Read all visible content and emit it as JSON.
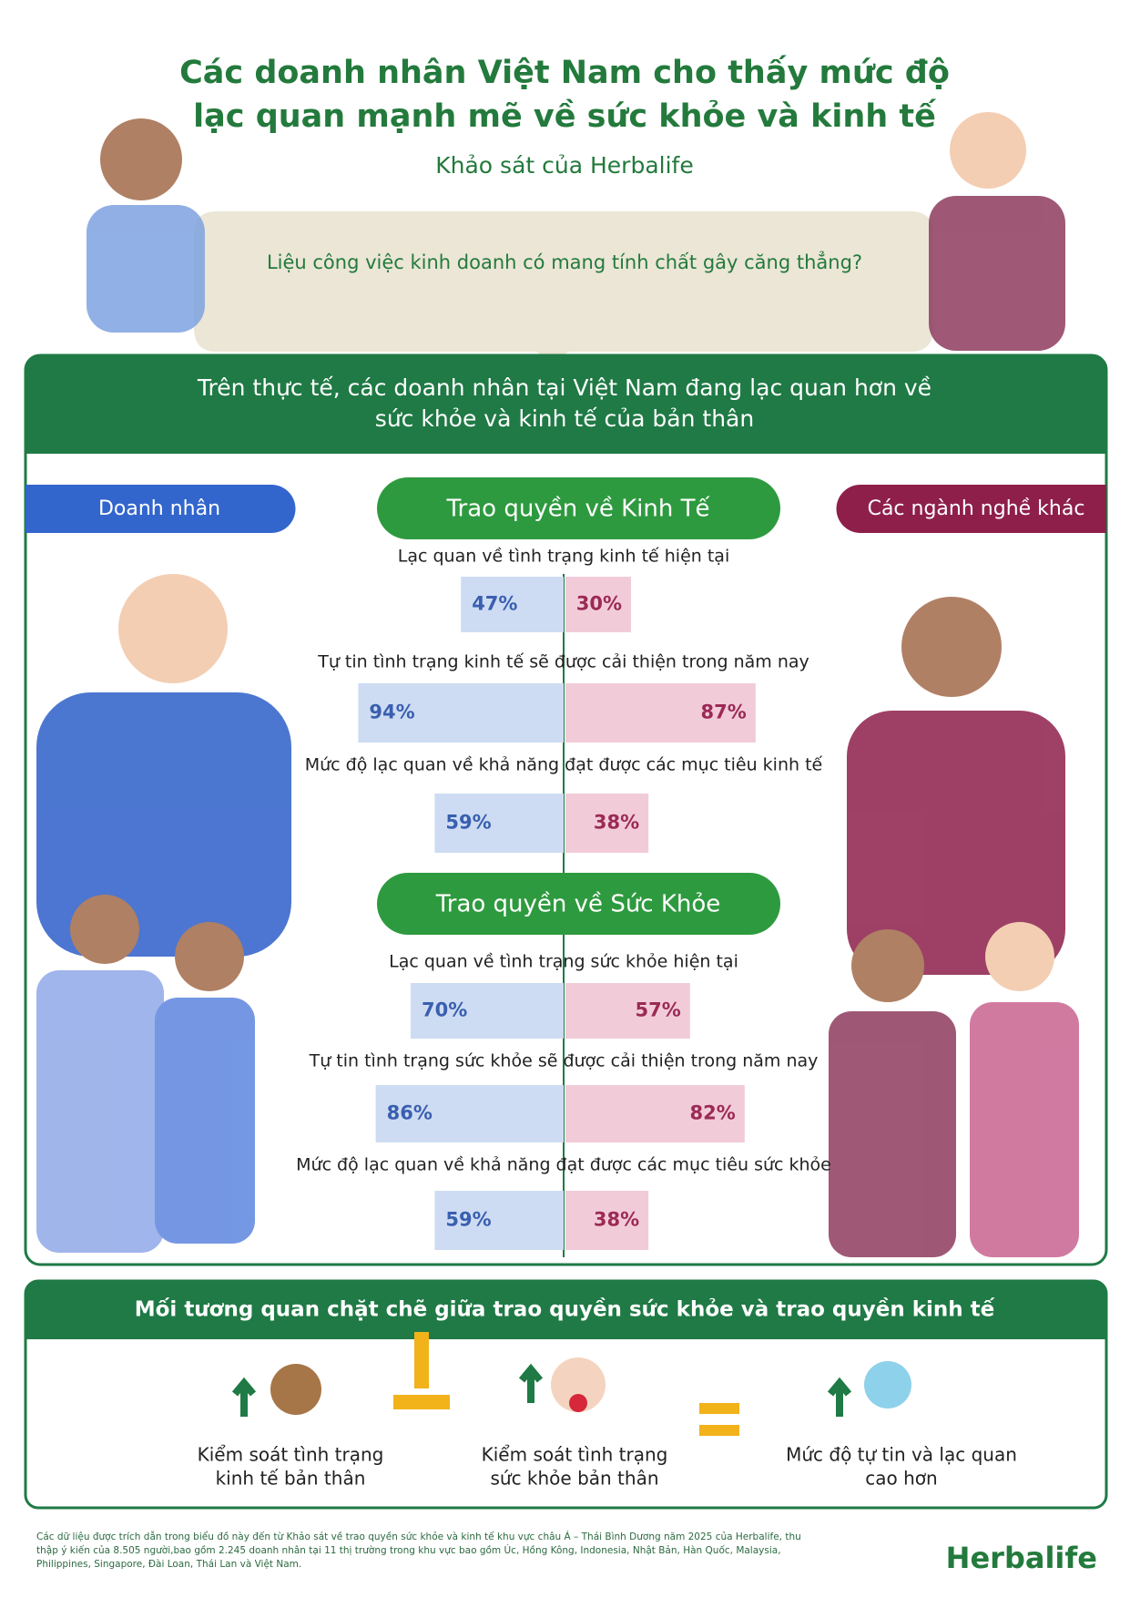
{
  "header": {
    "title_lines": [
      "Các doanh nhân Việt Nam cho thấy mức độ",
      "lạc quan mạnh mẽ về sức khỏe và kinh tế"
    ],
    "subtitle": "Khảo sát của Herbalife",
    "question": "Liệu công việc kinh doanh có mang tính chất gây căng thẳng?"
  },
  "banner_lines": [
    "Trên thực tế, các doanh nhân tại Việt Nam đang lạc quan hơn về",
    "sức khỏe và kinh tế của bản thân"
  ],
  "legend": {
    "left": {
      "label": "Doanh nhân",
      "color": "#3366cc"
    },
    "right": {
      "label": "Các ngành nghề khác",
      "color": "#8e1f4b"
    }
  },
  "sections": [
    {
      "title": "Trao quyền về Kinh Tế",
      "rows": [
        {
          "label": "Lạc quan về tình trạng kinh tế hiện tại",
          "left": 47,
          "left_label": "47%",
          "right": 30,
          "right_label": "30%"
        },
        {
          "label": "Tự tin tình trạng kinh tế sẽ được cải thiện trong năm nay",
          "left": 94,
          "left_label": "94%",
          "right": 87,
          "right_label": "87%"
        },
        {
          "label": "Mức độ lạc quan về khả năng đạt được các mục tiêu kinh tế",
          "left": 59,
          "left_label": "59%",
          "right": 38,
          "right_label": "38%"
        }
      ]
    },
    {
      "title": "Trao quyền về Sức Khỏe",
      "rows": [
        {
          "label": "Lạc quan về tình trạng sức khỏe hiện tại",
          "left": 70,
          "left_label": "70%",
          "right": 57,
          "right_label": "57%"
        },
        {
          "label": "Tự tin tình trạng sức khỏe sẽ được cải thiện trong năm nay",
          "left": 86,
          "left_label": "86%",
          "right": 82,
          "right_label": "82%"
        },
        {
          "label": "Mức độ lạc quan về khả năng đạt được các mục tiêu sức khỏe",
          "left": 59,
          "left_label": "59%",
          "right": 38,
          "right_label": "38%"
        }
      ]
    }
  ],
  "summary": {
    "title": "Mối tương quan chặt chẽ giữa trao quyền sức khỏe và trao quyền kinh tế",
    "items": [
      [
        "Kiểm soát tình trạng",
        "kinh tế bản thân"
      ],
      [
        "Kiểm soát tình trạng",
        "sức khỏe bản thân"
      ],
      [
        "Mức độ tự tin và lạc quan",
        "cao hơn"
      ]
    ]
  },
  "footnote": "Các dữ liệu được trích dẫn trong biểu đồ này đến từ Khảo sát về trao quyền sức khỏe và kinh tế khu vực châu Á – Thái Bình Dương năm 2025 của Herbalife, thu thập ý kiến của 8.505 người,bao gồm 2.245 doanh nhân tại 11 thị trường trong khu vực bao gồm Úc, Hồng Kông, Indonesia, Nhật Bản, Hàn Quốc, Malaysia, Philippines, Singapore, Đài Loan, Thái Lan và Việt Nam.",
  "brand": "Herbalife"
}
